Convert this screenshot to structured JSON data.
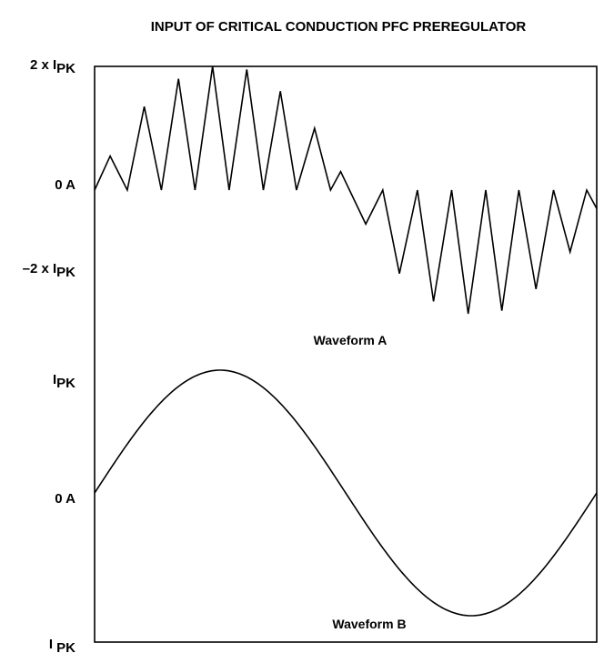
{
  "title": "INPUT OF CRITICAL CONDUCTION PFC PREREGULATOR",
  "chart_data": [
    {
      "type": "line",
      "name": "Waveform A",
      "label": "Waveform A",
      "y_ticks": [
        {
          "value": 2,
          "text": "2 x I",
          "sub": "PK"
        },
        {
          "value": 0,
          "text": "0 A",
          "sub": ""
        },
        {
          "value": -2,
          "text": "–2 x I",
          "sub": "PK"
        }
      ],
      "ylim": [
        -2,
        2
      ],
      "xlim": [
        0,
        1
      ],
      "x": [
        0.0,
        0.031,
        0.065,
        0.099,
        0.133,
        0.167,
        0.2,
        0.235,
        0.268,
        0.303,
        0.336,
        0.37,
        0.402,
        0.438,
        0.47,
        0.49,
        0.54,
        0.574,
        0.607,
        0.643,
        0.675,
        0.711,
        0.744,
        0.779,
        0.811,
        0.845,
        0.879,
        0.914,
        0.947,
        0.98,
        1.0
      ],
      "y": [
        0.0,
        1.1,
        0.0,
        2.7,
        0.0,
        3.6,
        0.0,
        4.0,
        0.0,
        3.9,
        0.0,
        3.2,
        0.0,
        2.0,
        0.0,
        0.6,
        -1.1,
        0.0,
        -2.7,
        0.0,
        -3.6,
        0.0,
        -4.0,
        0.0,
        -3.9,
        0.0,
        -3.2,
        0.0,
        -2.0,
        0.0,
        -0.6
      ]
    },
    {
      "type": "line",
      "name": "Waveform B",
      "label": "Waveform B",
      "y_ticks": [
        {
          "value": 1,
          "text": "I",
          "sub": "PK"
        },
        {
          "value": 0,
          "text": "0 A",
          "sub": ""
        },
        {
          "value": -1,
          "text": "I ",
          "sub": "PK"
        }
      ],
      "ylim": [
        -1,
        1
      ],
      "xlim": [
        0,
        1
      ],
      "shape": "sine",
      "cycles": 1,
      "amplitude": 1
    }
  ]
}
